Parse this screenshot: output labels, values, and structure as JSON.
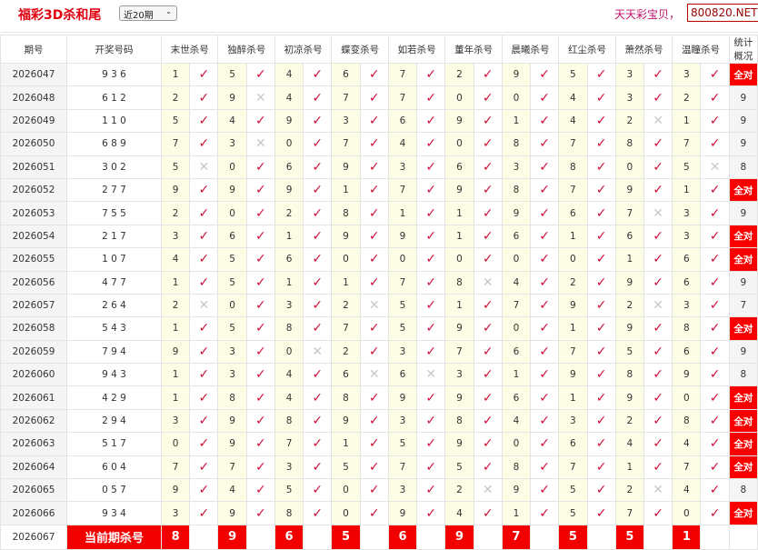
{
  "header": {
    "title": "福彩3D杀和尾",
    "range_select": "近20期",
    "slogan": "天天彩宝贝，",
    "site": "800820.NET"
  },
  "columns": [
    "期号",
    "开奖号码",
    "末世杀号",
    "独醉杀号",
    "初凉杀号",
    "蝶变杀号",
    "如若杀号",
    "董年杀号",
    "晨曦杀号",
    "红尘杀号",
    "萧然杀号",
    "温瞳杀号",
    "统计概况"
  ],
  "colors": {
    "accent": "#f80000",
    "check": "#d0103a",
    "cross": "#c8c8c8",
    "kill_cell": "#fdfde6"
  },
  "rows": [
    {
      "period": "2026047",
      "draw": "9 3 6",
      "kills": [
        "1",
        "5",
        "4",
        "6",
        "7",
        "2",
        "9",
        "5",
        "3",
        "3"
      ],
      "marks": "cccccccccc",
      "stat": "全对"
    },
    {
      "period": "2026048",
      "draw": "6 1 2",
      "kills": [
        "2",
        "9",
        "4",
        "7",
        "7",
        "0",
        "0",
        "4",
        "3",
        "2"
      ],
      "marks": "cxcccccccc",
      "stat": "9"
    },
    {
      "period": "2026049",
      "draw": "1 1 0",
      "kills": [
        "5",
        "4",
        "9",
        "3",
        "6",
        "9",
        "1",
        "4",
        "2",
        "1"
      ],
      "marks": "ccccccccxc",
      "stat": "9"
    },
    {
      "period": "2026050",
      "draw": "6 8 9",
      "kills": [
        "7",
        "3",
        "0",
        "7",
        "4",
        "0",
        "8",
        "7",
        "8",
        "7"
      ],
      "marks": "cxcccccccc",
      "stat": "9"
    },
    {
      "period": "2026051",
      "draw": "3 0 2",
      "kills": [
        "5",
        "0",
        "6",
        "9",
        "3",
        "6",
        "3",
        "8",
        "0",
        "5"
      ],
      "marks": "xccccccccx",
      "stat": "8"
    },
    {
      "period": "2026052",
      "draw": "2 7 7",
      "kills": [
        "9",
        "9",
        "9",
        "1",
        "7",
        "9",
        "8",
        "7",
        "9",
        "1"
      ],
      "marks": "cccccccccc",
      "stat": "全对"
    },
    {
      "period": "2026053",
      "draw": "7 5 5",
      "kills": [
        "2",
        "0",
        "2",
        "8",
        "1",
        "1",
        "9",
        "6",
        "7",
        "3"
      ],
      "marks": "ccccccccxc",
      "stat": "9"
    },
    {
      "period": "2026054",
      "draw": "2 1 7",
      "kills": [
        "3",
        "6",
        "1",
        "9",
        "9",
        "1",
        "6",
        "1",
        "6",
        "3"
      ],
      "marks": "cccccccccc",
      "stat": "全对"
    },
    {
      "period": "2026055",
      "draw": "1 0 7",
      "kills": [
        "4",
        "5",
        "6",
        "0",
        "0",
        "0",
        "0",
        "0",
        "1",
        "6"
      ],
      "marks": "cccccccccc",
      "stat": "全对"
    },
    {
      "period": "2026056",
      "draw": "4 7 7",
      "kills": [
        "1",
        "5",
        "1",
        "1",
        "7",
        "8",
        "4",
        "2",
        "9",
        "6"
      ],
      "marks": "cccccxcccc",
      "stat": "9"
    },
    {
      "period": "2026057",
      "draw": "2 6 4",
      "kills": [
        "2",
        "0",
        "3",
        "2",
        "5",
        "1",
        "7",
        "9",
        "2",
        "3"
      ],
      "marks": "xccxccccxc",
      "stat": "7"
    },
    {
      "period": "2026058",
      "draw": "5 4 3",
      "kills": [
        "1",
        "5",
        "8",
        "7",
        "5",
        "9",
        "0",
        "1",
        "9",
        "8"
      ],
      "marks": "cccccccccc",
      "stat": "全对"
    },
    {
      "period": "2026059",
      "draw": "7 9 4",
      "kills": [
        "9",
        "3",
        "0",
        "2",
        "3",
        "7",
        "6",
        "7",
        "5",
        "6"
      ],
      "marks": "ccxccccccc",
      "stat": "9"
    },
    {
      "period": "2026060",
      "draw": "9 4 3",
      "kills": [
        "1",
        "3",
        "4",
        "6",
        "6",
        "3",
        "1",
        "9",
        "8",
        "9"
      ],
      "marks": "cccxxccccc",
      "stat": "8"
    },
    {
      "period": "2026061",
      "draw": "4 2 9",
      "kills": [
        "1",
        "8",
        "4",
        "8",
        "9",
        "9",
        "6",
        "1",
        "9",
        "0"
      ],
      "marks": "cccccccccc",
      "stat": "全对"
    },
    {
      "period": "2026062",
      "draw": "2 9 4",
      "kills": [
        "3",
        "9",
        "8",
        "9",
        "3",
        "8",
        "4",
        "3",
        "2",
        "8"
      ],
      "marks": "cccccccccc",
      "stat": "全对"
    },
    {
      "period": "2026063",
      "draw": "5 1 7",
      "kills": [
        "0",
        "9",
        "7",
        "1",
        "5",
        "9",
        "0",
        "6",
        "4",
        "4"
      ],
      "marks": "cccccccccc",
      "stat": "全对"
    },
    {
      "period": "2026064",
      "draw": "6 0 4",
      "kills": [
        "7",
        "7",
        "3",
        "5",
        "7",
        "5",
        "8",
        "7",
        "1",
        "7"
      ],
      "marks": "cccccccccc",
      "stat": "全对"
    },
    {
      "period": "2026065",
      "draw": "0 5 7",
      "kills": [
        "9",
        "4",
        "5",
        "0",
        "3",
        "2",
        "9",
        "5",
        "2",
        "4"
      ],
      "marks": "cccccxccxc",
      "stat": "8"
    },
    {
      "period": "2026066",
      "draw": "9 3 4",
      "kills": [
        "3",
        "9",
        "8",
        "0",
        "9",
        "4",
        "1",
        "5",
        "7",
        "0"
      ],
      "marks": "cccccccccc",
      "stat": "全对"
    }
  ],
  "current": {
    "period": "2026067",
    "label": "当前期杀号",
    "kills": [
      "8",
      "9",
      "6",
      "5",
      "6",
      "9",
      "7",
      "5",
      "5",
      "1"
    ]
  },
  "marks": {
    "c": "✓",
    "x": "✕"
  }
}
